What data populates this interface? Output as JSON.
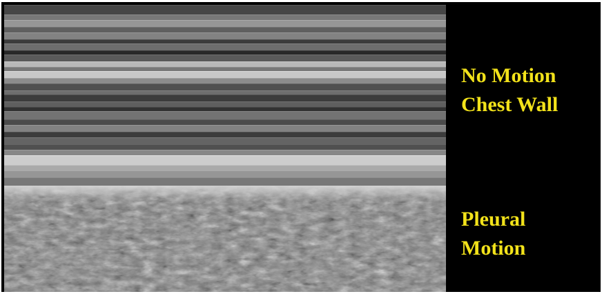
{
  "labels": {
    "chest_wall_line1": "No Motion",
    "chest_wall_line2": "Chest Wall",
    "pleura_line1": "Pleural",
    "pleura_line2": "Motion"
  },
  "colors": {
    "background": "#000000",
    "label_text": "#f2e21a"
  }
}
